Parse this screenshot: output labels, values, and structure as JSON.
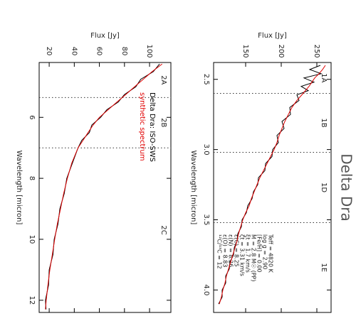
{
  "title": "Delta Dra",
  "chart_data": [
    {
      "type": "line",
      "x_label": "Wavelength [micron]",
      "y_label": "Flux [Jy]",
      "xlim": [
        2.38,
        4.16
      ],
      "ylim": [
        105,
        270
      ],
      "xticks": [
        2.5,
        {
          "value": 3,
          "label": "3.0"
        },
        3.5,
        {
          "value": 4,
          "label": "4.0"
        }
      ],
      "yticks": [
        150,
        200,
        250
      ],
      "band_edges": [
        2.6,
        3.02,
        3.52
      ],
      "band_labels": [
        "1A",
        "1B",
        "1D",
        "1E"
      ],
      "annotations": [
        "Teff = 4820 K",
        "log g = 2.90",
        "[Fe/H] = 0.00",
        "M = 2.8 M☉ (PP)",
        "ξt = 1.7 km/s",
        "ζt = 3.31 km/s",
        "ε(C) = 8.25",
        "ε(N) = 8.26",
        "ε(O) = 8.83",
        "¹²C/¹³C = 12"
      ],
      "x": [
        2.4,
        2.43,
        2.46,
        2.49,
        2.52,
        2.55,
        2.58,
        2.61,
        2.65,
        2.7,
        2.75,
        2.8,
        2.85,
        2.9,
        2.95,
        3.0,
        3.05,
        3.1,
        3.15,
        3.2,
        3.25,
        3.3,
        3.35,
        3.4,
        3.45,
        3.5,
        3.55,
        3.6,
        3.65,
        3.7,
        3.75,
        3.8,
        3.85,
        3.9,
        3.95,
        4.0,
        4.05,
        4.1
      ],
      "series": [
        {
          "color": "#000000",
          "values": [
            255,
            240,
            256,
            232,
            246,
            228,
            238,
            222,
            225,
            212,
            213,
            201,
            204,
            194,
            196,
            188,
            187,
            178,
            177,
            168,
            167,
            161,
            159,
            153,
            151,
            145,
            144,
            139,
            138,
            134,
            133,
            128,
            127,
            122,
            122,
            117,
            117,
            112
          ]
        },
        {
          "color": "#e00000",
          "values": [
            262,
            258,
            253,
            247,
            243,
            239,
            234,
            229,
            222,
            215,
            210,
            205,
            201,
            197,
            194,
            190,
            185,
            180,
            175,
            170,
            166,
            162,
            158,
            155,
            150,
            146,
            143,
            140,
            138,
            135,
            132,
            129,
            126,
            123,
            121,
            118,
            116,
            113
          ]
        }
      ]
    },
    {
      "type": "line",
      "x_label": "Wavelength [micron]",
      "y_label": "Flux [Jy]",
      "xlim": [
        4.2,
        12.4
      ],
      "ylim": [
        12,
        117
      ],
      "xticks": [
        6,
        8,
        10,
        12
      ],
      "yticks": [
        20,
        40,
        60,
        80,
        100
      ],
      "band_edges": [
        5.35,
        7.0
      ],
      "band_labels": [
        "2A",
        "2B",
        "2C"
      ],
      "x": [
        4.25,
        4.5,
        4.75,
        5.0,
        5.25,
        5.5,
        5.75,
        6.0,
        6.25,
        6.5,
        6.75,
        7.0,
        7.5,
        8.0,
        8.5,
        9.0,
        9.5,
        10.0,
        10.5,
        11.0,
        11.5,
        12.0,
        12.3
      ],
      "series": [
        {
          "name": "Delta Dra: ISO-SWS",
          "color": "#000000",
          "values": [
            108,
            103,
            93,
            89,
            80,
            75,
            66,
            61,
            54,
            52,
            46,
            43,
            38.5,
            34,
            32,
            28.5,
            27,
            24,
            23,
            20,
            19.5,
            17,
            17.5
          ]
        },
        {
          "name": "synthetic spectrum",
          "color": "#e00000",
          "values": [
            110,
            102,
            95,
            88,
            81,
            74,
            67,
            60,
            55,
            51,
            47,
            43,
            38,
            34.5,
            31.5,
            29,
            26.5,
            24.4,
            22.5,
            20.5,
            19,
            17.6,
            17
          ]
        }
      ]
    }
  ]
}
